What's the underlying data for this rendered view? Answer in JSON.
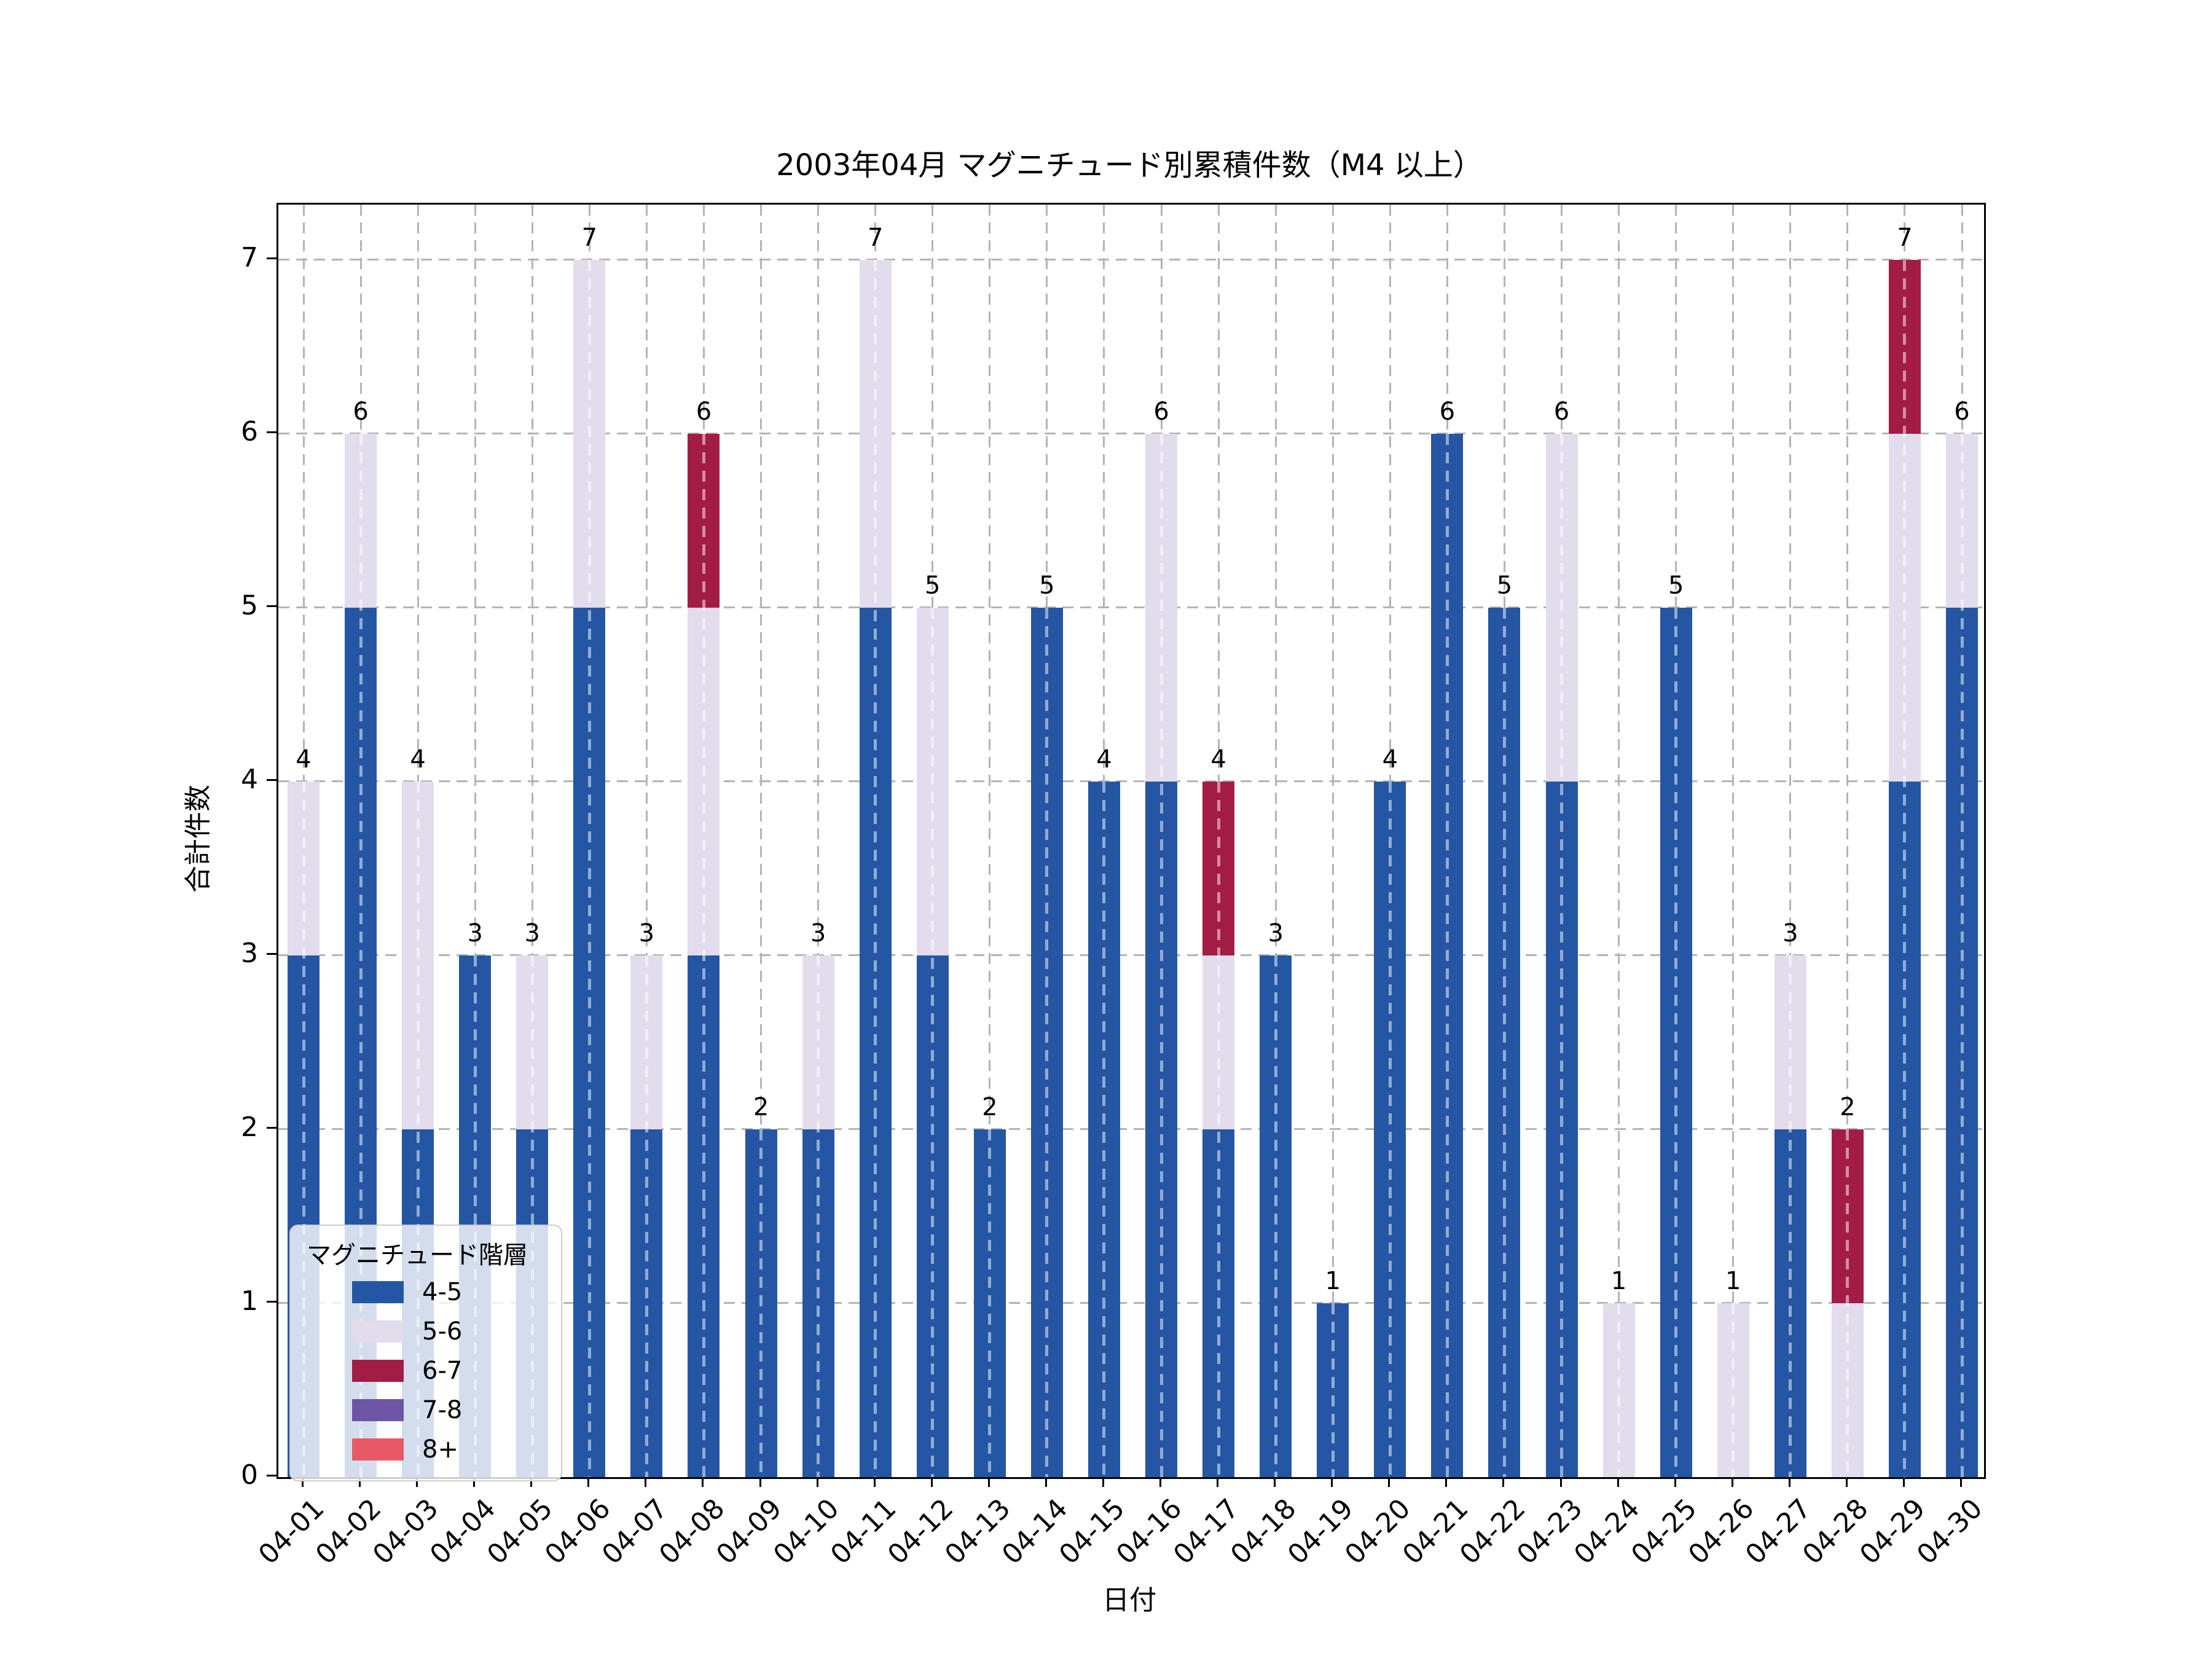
{
  "chart_data": {
    "type": "bar",
    "stacked": true,
    "title": "2003年04月 マグニチュード別累積件数（M4 以上）",
    "xlabel": "日付",
    "ylabel": "合計件数",
    "yticks": [
      0,
      1,
      2,
      3,
      4,
      5,
      6,
      7
    ],
    "ylim": [
      0,
      7.32
    ],
    "grid": "dashed",
    "legend_position": "lower left",
    "legend_title": "マグニチュード階層",
    "categories": [
      "04-01",
      "04-02",
      "04-03",
      "04-04",
      "04-05",
      "04-06",
      "04-07",
      "04-08",
      "04-09",
      "04-10",
      "04-11",
      "04-12",
      "04-13",
      "04-14",
      "04-15",
      "04-16",
      "04-17",
      "04-18",
      "04-19",
      "04-20",
      "04-21",
      "04-22",
      "04-23",
      "04-24",
      "04-25",
      "04-26",
      "04-27",
      "04-28",
      "04-29",
      "04-30"
    ],
    "series": [
      {
        "name": "4-5",
        "color": "#2456a4",
        "values": [
          3,
          5,
          2,
          3,
          2,
          5,
          2,
          3,
          2,
          2,
          5,
          3,
          2,
          5,
          4,
          4,
          2,
          3,
          1,
          4,
          6,
          5,
          4,
          0,
          5,
          0,
          2,
          0,
          4,
          5
        ]
      },
      {
        "name": "5-6",
        "color": "#e2dcec",
        "values": [
          1,
          1,
          2,
          0,
          1,
          2,
          1,
          2,
          0,
          1,
          2,
          2,
          0,
          0,
          0,
          2,
          1,
          0,
          0,
          0,
          0,
          0,
          2,
          1,
          0,
          1,
          1,
          1,
          2,
          1
        ]
      },
      {
        "name": "6-7",
        "color": "#a31c45",
        "values": [
          0,
          0,
          0,
          0,
          0,
          0,
          0,
          1,
          0,
          0,
          0,
          0,
          0,
          0,
          0,
          0,
          1,
          0,
          0,
          0,
          0,
          0,
          0,
          0,
          0,
          0,
          0,
          1,
          1,
          0
        ]
      },
      {
        "name": "7-8",
        "color": "#6c55a4",
        "values": [
          0,
          0,
          0,
          0,
          0,
          0,
          0,
          0,
          0,
          0,
          0,
          0,
          0,
          0,
          0,
          0,
          0,
          0,
          0,
          0,
          0,
          0,
          0,
          0,
          0,
          0,
          0,
          0,
          0,
          0
        ]
      },
      {
        "name": "8+",
        "color": "#e85866",
        "values": [
          0,
          0,
          0,
          0,
          0,
          0,
          0,
          0,
          0,
          0,
          0,
          0,
          0,
          0,
          0,
          0,
          0,
          0,
          0,
          0,
          0,
          0,
          0,
          0,
          0,
          0,
          0,
          0,
          0,
          0
        ]
      }
    ],
    "totals": [
      4,
      6,
      4,
      3,
      3,
      7,
      3,
      6,
      2,
      3,
      7,
      5,
      2,
      5,
      4,
      6,
      4,
      3,
      1,
      4,
      6,
      5,
      6,
      1,
      5,
      1,
      3,
      2,
      7,
      6
    ]
  }
}
